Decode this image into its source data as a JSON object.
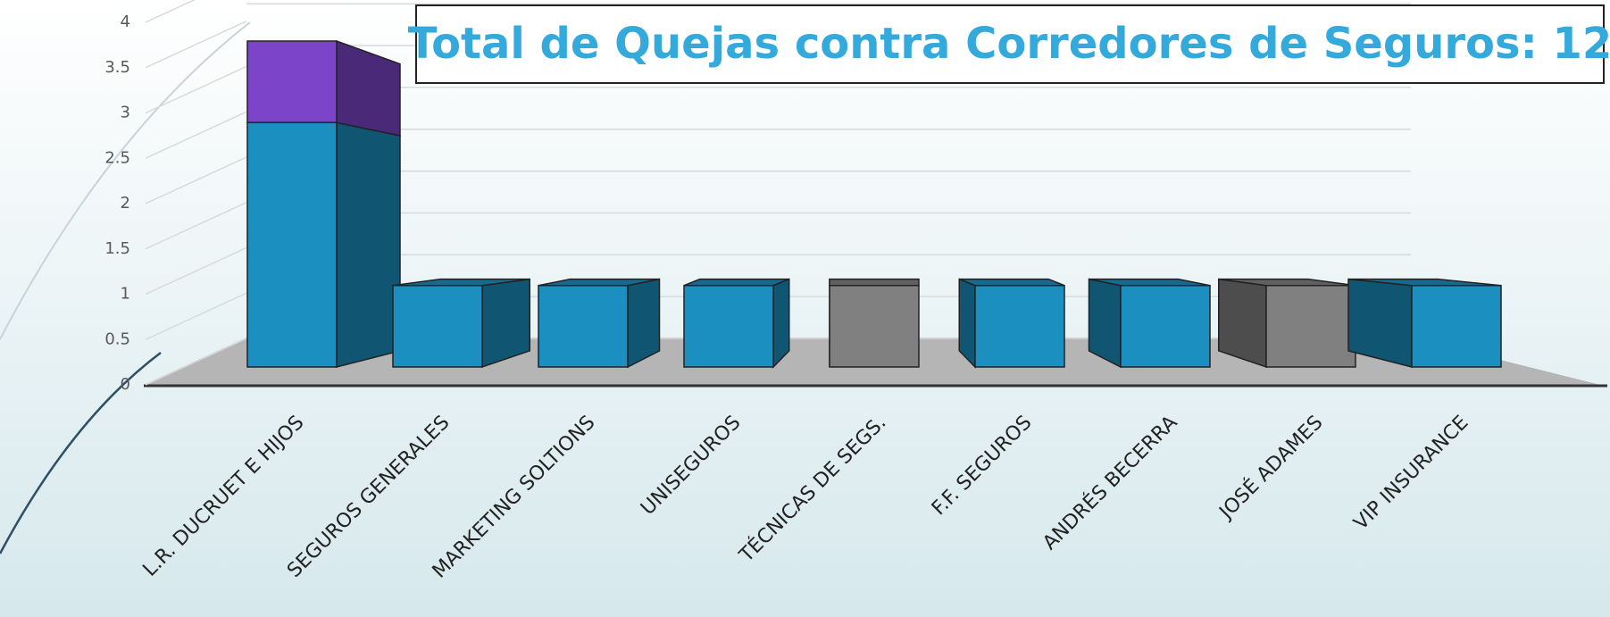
{
  "chart_data": {
    "type": "bar3d_stacked",
    "title": "Total de Quejas contra Corredores de Seguros: 12",
    "categories": [
      "L.R. DUCRUET E HIJOS",
      "SEGUROS GENERALES",
      "MARKETING SOLTIONS",
      "UNISEGUROS",
      "TÉCNICAS DE SEGS.",
      "F.F. SEGUROS",
      "ANDRÉS BECERRA",
      "JOSÉ ADAMES",
      "VIP INSURANCE"
    ],
    "series": [
      {
        "values": [
          3,
          1,
          1,
          1,
          1,
          1,
          1,
          1,
          1
        ],
        "colors": [
          "#1b8fbf",
          "#1b8fbf",
          "#1b8fbf",
          "#1b8fbf",
          "#808080",
          "#1b8fbf",
          "#1b8fbf",
          "#808080",
          "#1b8fbf"
        ]
      },
      {
        "values": [
          1,
          null,
          null,
          null,
          null,
          null,
          null,
          null,
          null
        ],
        "color": "#7b44c9"
      }
    ],
    "ylim": [
      0,
      4
    ],
    "yticks": [
      0,
      0.5,
      1,
      1.5,
      2,
      2.5,
      3,
      3.5,
      4
    ],
    "grid": true
  }
}
